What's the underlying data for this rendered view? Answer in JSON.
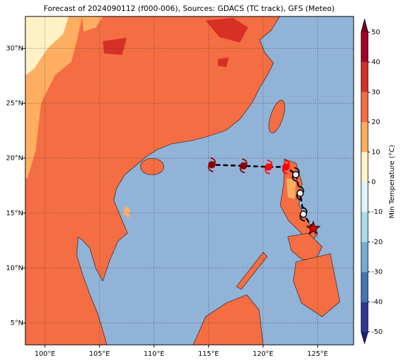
{
  "map": {
    "title": "Forecast of 2024090112 (f000-006), Sources: GDACS (TC track), GFS (Meteo)",
    "xlim": [
      98.2,
      128.3
    ],
    "ylim": [
      3.0,
      32.9
    ],
    "xticks": [
      {
        "value": 100,
        "label": "100°E"
      },
      {
        "value": 105,
        "label": "105°E"
      },
      {
        "value": 110,
        "label": "110°E"
      },
      {
        "value": 115,
        "label": "115°E"
      },
      {
        "value": 120,
        "label": "120°E"
      },
      {
        "value": 125,
        "label": "125°E"
      }
    ],
    "yticks": [
      {
        "value": 5,
        "label": "5°N"
      },
      {
        "value": 10,
        "label": "10°N"
      },
      {
        "value": 15,
        "label": "15°N"
      },
      {
        "value": 20,
        "label": "20°N"
      },
      {
        "value": 25,
        "label": "25°N"
      },
      {
        "value": 30,
        "label": "30°N"
      }
    ],
    "grid": true,
    "ocean_color": "#92b3d8",
    "track": {
      "lon": [
        124.6,
        123.7,
        123.4,
        123.0,
        122.1,
        120.5,
        118.2,
        115.3
      ],
      "lat": [
        13.6,
        14.9,
        16.8,
        18.5,
        19.2,
        19.2,
        19.3,
        19.4
      ],
      "colors": [
        "#e00000",
        "#ffffff",
        "#ffffff",
        "#ffffff",
        "#ff0000",
        "#ff0000",
        "#8b0000",
        "#8b0000"
      ],
      "markers": [
        "star",
        "storm",
        "storm",
        "storm",
        "storm",
        "storm",
        "storm",
        "storm"
      ]
    }
  },
  "colorbar": {
    "label": "Min Temperature (°C)",
    "levels": [
      -50,
      -40,
      -30,
      -20,
      -10,
      0,
      10,
      20,
      30,
      40,
      50
    ],
    "colors": [
      "#313695",
      "#4575b4",
      "#74add1",
      "#abd9e9",
      "#e0f3f8",
      "#fff4c8",
      "#fdae61",
      "#f46d43",
      "#d73027",
      "#a50026"
    ],
    "under": "#1f1f80",
    "over": "#7a0020",
    "ticks": [
      -50,
      -40,
      -30,
      -20,
      -10,
      0,
      10,
      20,
      30,
      40,
      50
    ]
  }
}
